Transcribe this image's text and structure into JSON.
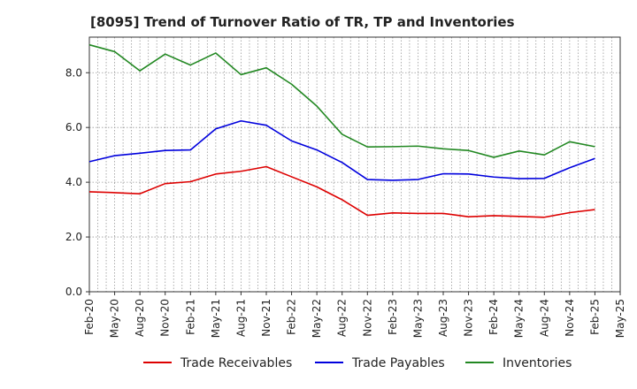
{
  "chart_data": {
    "type": "line",
    "title": "[8095]  Trend of Turnover Ratio of TR, TP and Inventories",
    "xlabel": "",
    "ylabel": "",
    "ylim": [
      0,
      9.3
    ],
    "yticks": [
      "0.0",
      "2.0",
      "4.0",
      "6.0",
      "8.0"
    ],
    "ytick_values": [
      0,
      2,
      4,
      6,
      8
    ],
    "x_tick_labels": [
      "Feb-20",
      "May-20",
      "Aug-20",
      "Nov-20",
      "Feb-21",
      "May-21",
      "Aug-21",
      "Nov-21",
      "Feb-22",
      "May-22",
      "Aug-22",
      "Nov-22",
      "Feb-23",
      "May-23",
      "Aug-23",
      "Nov-23",
      "Feb-24",
      "May-24",
      "Aug-24",
      "Nov-24",
      "Feb-25",
      "May-25"
    ],
    "x_range": [
      "Feb-20",
      "May-25"
    ],
    "months_per_step": 3,
    "grid": true,
    "legend_position": "bottom",
    "series": [
      {
        "name": "Trade Receivables",
        "color": "#dd0000",
        "values": [
          3.65,
          3.62,
          3.58,
          3.95,
          4.02,
          4.3,
          4.4,
          4.57,
          4.2,
          3.83,
          3.36,
          2.79,
          2.88,
          2.86,
          2.86,
          2.74,
          2.78,
          2.75,
          2.72,
          2.89,
          3.0
        ]
      },
      {
        "name": "Trade Payables",
        "color": "#0000dd",
        "values": [
          4.75,
          4.97,
          5.06,
          5.16,
          5.18,
          5.95,
          6.24,
          6.08,
          5.51,
          5.18,
          4.72,
          4.1,
          4.07,
          4.1,
          4.31,
          4.3,
          4.19,
          4.13,
          4.14,
          4.53,
          4.87
        ]
      },
      {
        "name": "Inventories",
        "color": "#228822",
        "values": [
          9.02,
          8.77,
          8.07,
          8.68,
          8.28,
          8.72,
          7.93,
          8.18,
          7.58,
          6.78,
          5.75,
          5.29,
          5.3,
          5.32,
          5.22,
          5.16,
          4.91,
          5.14,
          5.0,
          5.48,
          5.3
        ]
      }
    ]
  }
}
